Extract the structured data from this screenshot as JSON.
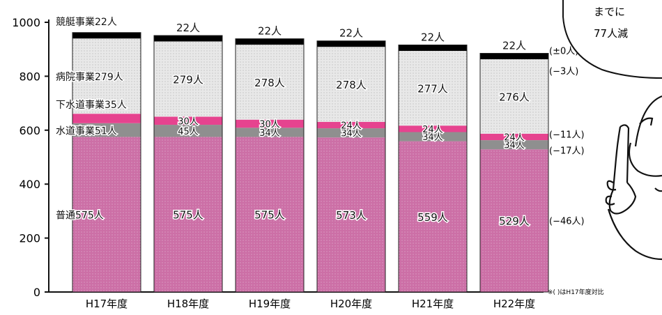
{
  "chart_data": {
    "type": "bar",
    "stacked": true,
    "categories": [
      "H17年度",
      "H18年度",
      "H19年度",
      "H20年度",
      "H21年度",
      "H22年度"
    ],
    "y_ticks": [
      "0",
      "200",
      "400",
      "600",
      "800",
      "1000"
    ],
    "ylim": [
      0,
      1000
    ],
    "series": [
      {
        "name": "普通",
        "values": [
          575,
          575,
          575,
          573,
          559,
          529
        ],
        "labels": [
          "575人",
          "575人",
          "575人",
          "573人",
          "559人",
          "529人"
        ]
      },
      {
        "name": "水道事業",
        "values": [
          51,
          45,
          34,
          34,
          34,
          34
        ],
        "labels": [
          "51人",
          "45人",
          "34人",
          "34人",
          "34人",
          "34人"
        ]
      },
      {
        "name": "下水道事業",
        "values": [
          35,
          30,
          30,
          24,
          24,
          24
        ],
        "labels": [
          "35人",
          "30人",
          "30人",
          "24人",
          "24人",
          "24人"
        ]
      },
      {
        "name": "病院事業",
        "values": [
          279,
          279,
          278,
          278,
          277,
          276
        ],
        "labels": [
          "279人",
          "279人",
          "278人",
          "278人",
          "277人",
          "276人"
        ]
      },
      {
        "name": "競艇事業",
        "values": [
          22,
          22,
          22,
          22,
          22,
          22
        ],
        "labels": [
          "22人",
          "22人",
          "22人",
          "22人",
          "22人",
          "22人"
        ]
      }
    ],
    "series_first_labels": [
      "普通575人",
      "水道事業51人",
      "下水道事業35人",
      "病院事業279人",
      "競艇事業22人"
    ],
    "diff_labels": [
      "(−46人)",
      "(−17人)",
      "(−11人)",
      "(−3人)",
      "(±0人)"
    ],
    "footnote": "※(  )はH17年度対比",
    "colors": {
      "普通": "#cc6fa6",
      "水道事業": "#8f8f8f",
      "下水道事業": "#e6438f",
      "病院事業": "#e8e8e8",
      "競艇事業": "#000000"
    }
  },
  "bubble": {
    "line1": "までに",
    "line2": "77人減"
  }
}
